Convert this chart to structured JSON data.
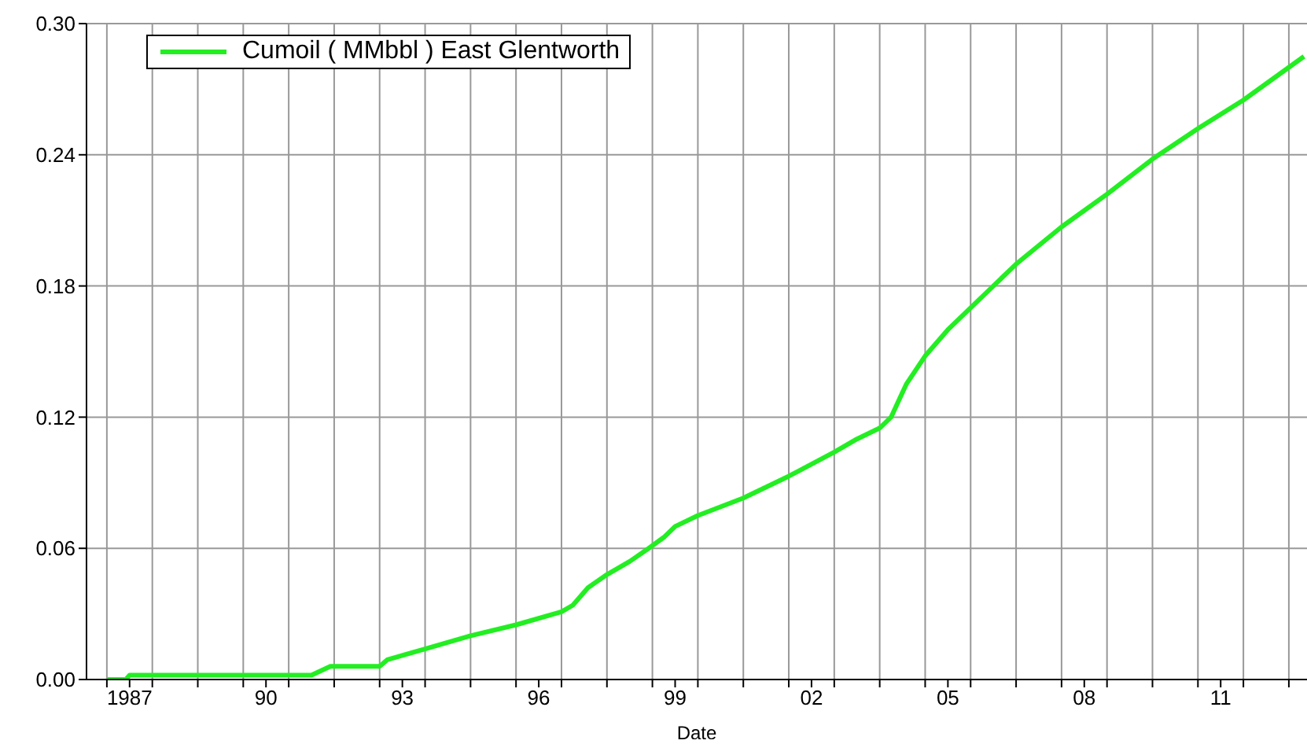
{
  "chart_data": {
    "type": "line",
    "xlabel": "Date",
    "legend": "top left",
    "grid": true,
    "marker": "none",
    "line_style": "solid",
    "xlim": [
      "1986-07-20",
      "2013-05-25"
    ],
    "xticks": [
      {
        "value": "1987",
        "label": null
      },
      {
        "value": "1987-07",
        "label": "1987"
      },
      {
        "value": "1988",
        "label": null
      },
      {
        "value": "1989",
        "label": null
      },
      {
        "value": "1990",
        "label": null
      },
      {
        "value": "1990-07",
        "label": "90"
      },
      {
        "value": "1991",
        "label": null
      },
      {
        "value": "1992",
        "label": null
      },
      {
        "value": "1993",
        "label": null
      },
      {
        "value": "1993-07",
        "label": "93"
      },
      {
        "value": "1994",
        "label": null
      },
      {
        "value": "1995",
        "label": null
      },
      {
        "value": "1996",
        "label": null
      },
      {
        "value": "1996-07",
        "label": "96"
      },
      {
        "value": "1997",
        "label": null
      },
      {
        "value": "1998",
        "label": null
      },
      {
        "value": "1999",
        "label": null
      },
      {
        "value": "1999-07",
        "label": "99"
      },
      {
        "value": "2000",
        "label": null
      },
      {
        "value": "2001",
        "label": null
      },
      {
        "value": "2002",
        "label": null
      },
      {
        "value": "2002-07",
        "label": "02"
      },
      {
        "value": "2003",
        "label": null
      },
      {
        "value": "2004",
        "label": null
      },
      {
        "value": "2005",
        "label": null
      },
      {
        "value": "2005-07",
        "label": "05"
      },
      {
        "value": "2006",
        "label": null
      },
      {
        "value": "2007",
        "label": null
      },
      {
        "value": "2008",
        "label": null
      },
      {
        "value": "2008-07",
        "label": "08"
      },
      {
        "value": "2009",
        "label": null
      },
      {
        "value": "2010",
        "label": null
      },
      {
        "value": "2011",
        "label": null
      },
      {
        "value": "2011-07",
        "label": "11"
      },
      {
        "value": "2012",
        "label": null
      },
      {
        "value": "2013",
        "label": null
      }
    ],
    "ylim": [
      0,
      0.3
    ],
    "yticks": [
      {
        "value": 0,
        "label": "0.00"
      },
      {
        "value": 0.06,
        "label": "0.06"
      },
      {
        "value": 0.12,
        "label": "0.12"
      },
      {
        "value": 0.18,
        "label": "0.18"
      },
      {
        "value": 0.24,
        "label": "0.24"
      },
      {
        "value": 0.3,
        "label": "0.30"
      }
    ],
    "series": [
      {
        "name": "Cumoil ( MMbbl ) East Glentworth",
        "color": "#22ee22",
        "x": [
          "1987-01",
          "1987-06",
          "1987-07",
          "1991-07",
          "1991-12",
          "1993-01",
          "1993-03",
          "1994-01",
          "1995-01",
          "1996-01",
          "1997-01",
          "1997-04",
          "1997-08",
          "1998-01",
          "1998-07",
          "1998-12",
          "1999-04",
          "1999-07",
          "2000-01",
          "2001-01",
          "2002-01",
          "2003-01",
          "2003-07",
          "2004-01",
          "2004-04",
          "2004-08",
          "2005-01",
          "2005-07",
          "2006-01",
          "2006-07",
          "2007-01",
          "2008-01",
          "2009-01",
          "2010-01",
          "2011-01",
          "2012-01",
          "2013-05"
        ],
        "values": [
          0,
          0,
          0.002,
          0.002,
          0.006,
          0.006,
          0.009,
          0.014,
          0.02,
          0.025,
          0.031,
          0.034,
          0.042,
          0.048,
          0.054,
          0.06,
          0.065,
          0.07,
          0.075,
          0.083,
          0.093,
          0.104,
          0.11,
          0.115,
          0.12,
          0.135,
          0.148,
          0.16,
          0.17,
          0.18,
          0.19,
          0.207,
          0.222,
          0.238,
          0.252,
          0.265,
          0.285
        ]
      }
    ]
  }
}
